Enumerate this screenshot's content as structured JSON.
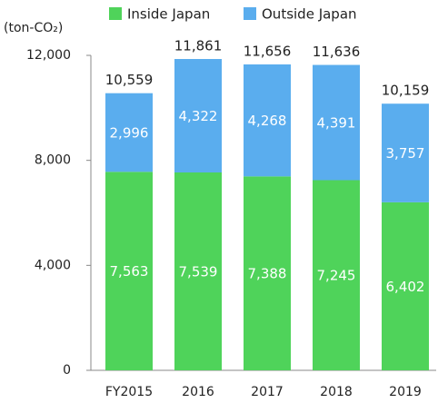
{
  "chart_data": {
    "type": "stacked-bar",
    "y_label": "(ton-CO₂)",
    "categories": [
      "FY2015",
      "2016",
      "2017",
      "2018",
      "2019"
    ],
    "series": [
      {
        "name": "Inside Japan",
        "color": "#4fd35a",
        "values": [
          7563,
          7539,
          7388,
          7245,
          6402
        ],
        "value_labels": [
          "7,563",
          "7,539",
          "7,388",
          "7,245",
          "6,402"
        ]
      },
      {
        "name": "Outside Japan",
        "color": "#5aadee",
        "values": [
          2996,
          4322,
          4268,
          4391,
          3757
        ],
        "value_labels": [
          "2,996",
          "4,322",
          "4,268",
          "4,391",
          "3,757"
        ]
      }
    ],
    "totals": {
      "values": [
        10559,
        11861,
        11656,
        11636,
        10159
      ],
      "value_labels": [
        "10,559",
        "11,861",
        "11,656",
        "11,636",
        "10,159"
      ]
    },
    "ylim": [
      0,
      12000
    ],
    "yticks": [
      0,
      {
        "value": 4000,
        "label": "4,000"
      },
      {
        "value": 8000,
        "label": "8,000"
      },
      {
        "value": 12000,
        "label": "12,000"
      }
    ],
    "legend": "top"
  }
}
